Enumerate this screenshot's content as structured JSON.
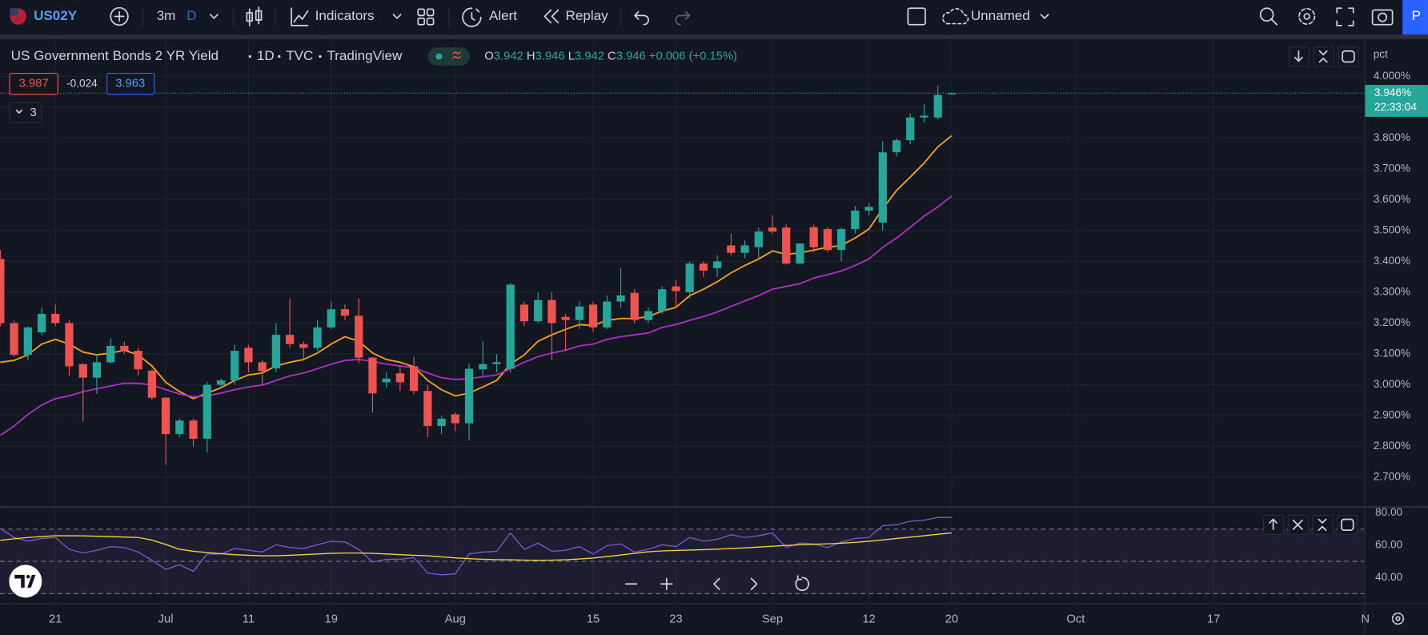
{
  "ui": {
    "symbol": "US02Y",
    "interval": "3m",
    "interval_unit": "D",
    "indicators": "Indicators",
    "alert": "Alert",
    "replay": "Replay",
    "layout_name": "Unnamed",
    "cut_button": "P"
  },
  "legend": {
    "title": "US Government Bonds 2 YR Yield",
    "timeframe": "1D",
    "exchange": "TVC",
    "source": "TradingView",
    "open_letter": "O",
    "high_letter": "H",
    "low_letter": "L",
    "close_letter": "C",
    "change": "+0.006",
    "change_percent": "(+0.15%)",
    "bid": 3.987,
    "spread": -0.024,
    "ask": 3.963,
    "hidden_indicators": "3"
  },
  "chart_data": [
    {
      "type": "candlestick",
      "categories": [
        null,
        null,
        null,
        null,
        "21",
        null,
        null,
        null,
        null,
        null,
        null,
        null,
        "Jul",
        null,
        null,
        null,
        null,
        null,
        "11",
        null,
        null,
        null,
        null,
        null,
        "19",
        null,
        null,
        null,
        null,
        null,
        null,
        null,
        null,
        "Aug",
        null,
        null,
        null,
        null,
        null,
        null,
        null,
        null,
        null,
        "15",
        null,
        null,
        null,
        null,
        null,
        "23",
        null,
        null,
        null,
        null,
        null,
        null,
        "Sep",
        null,
        null,
        null,
        null,
        null,
        null,
        "12",
        null,
        null,
        null,
        null,
        null,
        "20",
        null,
        null,
        null,
        null,
        null,
        null,
        null,
        null,
        "Oct",
        null,
        null,
        null,
        null,
        null,
        null,
        null,
        null,
        null,
        "17",
        null,
        null,
        null,
        null,
        null,
        null,
        null,
        null,
        null,
        null,
        "N"
      ],
      "open": [
        3.408,
        3.2,
        3.097,
        3.17,
        3.23,
        3.2,
        3.067,
        3.023,
        3.073,
        3.126,
        3.11,
        3.046,
        2.958,
        2.84,
        2.884,
        2.825,
        3,
        3.014,
        3.12,
        3.073,
        3.053,
        3.162,
        3.132,
        3.12,
        3.186,
        3.245,
        3.224,
        3.088,
        3.008,
        3.037,
        3.06,
        2.98,
        2.866,
        2.904,
        2.875,
        3.05,
        3.067,
        3.052,
        3.26,
        3.206,
        3.275,
        3.22,
        3.21,
        3.26,
        3.186,
        3.27,
        3.298,
        3.21,
        3.239,
        3.319,
        3.3,
        3.393,
        3.378,
        3.452,
        3.428,
        3.446,
        3.51,
        3.51,
        3.393,
        3.511,
        3.505,
        3.437,
        3.505,
        3.565,
        3.526,
        3.754,
        3.793,
        3.867,
        3.867,
        3.942,
        null,
        null,
        null,
        null,
        null,
        null,
        null,
        null,
        null,
        null,
        null,
        null,
        null,
        null,
        null,
        null,
        null,
        null,
        null,
        null,
        null,
        null,
        null,
        null,
        null,
        null,
        null,
        null,
        null,
        null
      ],
      "high": [
        3.437,
        3.21,
        3.19,
        3.25,
        3.26,
        3.21,
        3.07,
        3.1,
        3.15,
        3.14,
        3.12,
        3.05,
        2.96,
        2.89,
        2.89,
        3.01,
        3.02,
        3.13,
        3.13,
        3.08,
        3.2,
        3.28,
        3.14,
        3.21,
        3.27,
        3.26,
        3.28,
        3.09,
        3.04,
        3.06,
        3.09,
        3,
        2.9,
        2.91,
        3.07,
        3.14,
        3.1,
        3.33,
        3.27,
        3.3,
        3.3,
        3.23,
        3.27,
        3.27,
        3.29,
        3.38,
        3.31,
        3.25,
        3.32,
        3.34,
        3.4,
        3.4,
        3.42,
        3.49,
        3.47,
        3.51,
        3.55,
        3.52,
        3.46,
        3.52,
        3.51,
        3.51,
        3.58,
        3.59,
        3.79,
        3.8,
        3.88,
        3.91,
        3.97,
        3.946,
        null,
        null,
        null,
        null,
        null,
        null,
        null,
        null,
        null,
        null,
        null,
        null,
        null,
        null,
        null,
        null,
        null,
        null,
        null,
        null,
        null,
        null,
        null,
        null,
        null,
        null,
        null,
        null,
        null,
        null
      ],
      "low": [
        3.19,
        3.09,
        3.08,
        3.16,
        3.19,
        3.03,
        2.88,
        2.97,
        3.07,
        3.1,
        3.03,
        2.95,
        2.74,
        2.83,
        2.8,
        2.78,
        2.99,
        3,
        3.04,
        3,
        3.04,
        3.12,
        3.08,
        3.11,
        3.18,
        3.21,
        3.07,
        2.91,
        2.99,
        2.98,
        2.97,
        2.83,
        2.84,
        2.85,
        2.82,
        3.03,
        3.04,
        3.04,
        3.19,
        3.2,
        3.08,
        3.11,
        3.18,
        3.17,
        3.18,
        3.25,
        3.2,
        3.2,
        3.23,
        3.25,
        3.28,
        3.35,
        3.35,
        3.42,
        3.41,
        3.41,
        3.49,
        3.39,
        3.39,
        3.43,
        3.43,
        3.4,
        3.49,
        3.55,
        3.5,
        3.74,
        3.78,
        3.85,
        3.86,
        3.942,
        null,
        null,
        null,
        null,
        null,
        null,
        null,
        null,
        null,
        null,
        null,
        null,
        null,
        null,
        null,
        null,
        null,
        null,
        null,
        null,
        null,
        null,
        null,
        null,
        null,
        null,
        null,
        null,
        null,
        null
      ],
      "close": [
        3.2,
        3.097,
        3.186,
        3.23,
        3.2,
        3.06,
        3.023,
        3.073,
        3.126,
        3.11,
        3.05,
        2.958,
        2.84,
        2.884,
        2.825,
        3,
        3.014,
        3.11,
        3.073,
        3.044,
        3.162,
        3.132,
        3.12,
        3.186,
        3.245,
        3.224,
        3.088,
        2.972,
        3.02,
        3.008,
        2.98,
        2.866,
        2.89,
        2.875,
        3.052,
        3.067,
        3.073,
        3.325,
        3.206,
        3.275,
        3.2,
        3.21,
        3.254,
        3.186,
        3.27,
        3.29,
        3.21,
        3.239,
        3.31,
        3.304,
        3.393,
        3.37,
        3.4,
        3.428,
        3.452,
        3.497,
        3.497,
        3.393,
        3.458,
        3.446,
        3.437,
        3.505,
        3.565,
        3.577,
        3.754,
        3.793,
        3.867,
        3.873,
        3.94,
        3.946,
        null,
        null,
        null,
        null,
        null,
        null,
        null,
        null,
        null,
        null,
        null,
        null,
        null,
        null,
        null,
        null,
        null,
        null,
        null,
        null,
        null,
        null,
        null,
        null,
        null,
        null,
        null,
        null,
        null,
        null
      ],
      "series": [
        {
          "color": "#f7a21b",
          "values": [
            3.073,
            3.079,
            3.097,
            3.132,
            3.147,
            3.132,
            3.106,
            3.097,
            3.103,
            3.112,
            3.097,
            3.061,
            3.008,
            2.978,
            2.955,
            2.973,
            2.99,
            3.014,
            3.032,
            3.038,
            3.061,
            3.073,
            3.082,
            3.103,
            3.132,
            3.156,
            3.141,
            3.103,
            3.082,
            3.073,
            3.058,
            3.014,
            2.984,
            2.964,
            2.973,
            2.993,
            3.014,
            3.067,
            3.097,
            3.141,
            3.162,
            3.18,
            3.195,
            3.192,
            3.209,
            3.215,
            3.215,
            3.221,
            3.239,
            3.251,
            3.289,
            3.31,
            3.334,
            3.363,
            3.387,
            3.408,
            3.434,
            3.423,
            3.428,
            3.437,
            3.446,
            3.452,
            3.476,
            3.505,
            3.571,
            3.63,
            3.674,
            3.719,
            3.772,
            3.808,
            null,
            null,
            null,
            null,
            null,
            null,
            null,
            null,
            null,
            null,
            null,
            null,
            null,
            null,
            null,
            null,
            null,
            null,
            null,
            null,
            null,
            null,
            null,
            null,
            null,
            null,
            null,
            null,
            null,
            null
          ]
        },
        {
          "color": "#b02fc4",
          "values": [
            2.836,
            2.866,
            2.904,
            2.934,
            2.955,
            2.964,
            2.978,
            2.987,
            2.996,
            3.005,
            3.005,
            2.999,
            2.984,
            2.97,
            2.961,
            2.964,
            2.973,
            2.984,
            2.993,
            2.999,
            3.014,
            3.029,
            3.038,
            3.052,
            3.067,
            3.079,
            3.082,
            3.076,
            3.067,
            3.061,
            3.055,
            3.038,
            3.023,
            3.017,
            3.02,
            3.026,
            3.032,
            3.052,
            3.073,
            3.091,
            3.103,
            3.112,
            3.126,
            3.132,
            3.147,
            3.156,
            3.162,
            3.168,
            3.186,
            3.195,
            3.209,
            3.221,
            3.236,
            3.254,
            3.272,
            3.289,
            3.31,
            3.319,
            3.328,
            3.346,
            3.357,
            3.369,
            3.387,
            3.408,
            3.446,
            3.476,
            3.511,
            3.547,
            3.577,
            3.612,
            null,
            null,
            null,
            null,
            null,
            null,
            null,
            null,
            null,
            null,
            null,
            null,
            null,
            null,
            null,
            null,
            null,
            null,
            null,
            null,
            null,
            null,
            null,
            null,
            null,
            null,
            null,
            null,
            null,
            null
          ]
        }
      ],
      "up_color": "#26a69a",
      "down_color": "#ef5350",
      "ylim": [
        2.605,
        4.118
      ],
      "yticks": [
        {
          "value": 2.7,
          "label": "2.700%"
        },
        {
          "value": 2.8,
          "label": "2.800%"
        },
        {
          "value": 2.9,
          "label": "2.900%"
        },
        {
          "value": 3.0,
          "label": "3.000%"
        },
        {
          "value": 3.1,
          "label": "3.100%"
        },
        {
          "value": 3.2,
          "label": "3.200%"
        },
        {
          "value": 3.3,
          "label": "3.300%"
        },
        {
          "value": 3.4,
          "label": "3.400%"
        },
        {
          "value": 3.5,
          "label": "3.500%"
        },
        {
          "value": 3.6,
          "label": "3.600%"
        },
        {
          "value": 3.7,
          "label": "3.700%"
        },
        {
          "value": 3.8,
          "label": "3.800%"
        },
        {
          "value": 3.9,
          "label": "3.900%"
        },
        {
          "value": 4.0,
          "label": "4.000%"
        }
      ],
      "y_unit": "pct",
      "grid": true,
      "price_line": {
        "value": 3.946,
        "label": "3.946%",
        "countdown": "22:33:04",
        "color": "#26a69a"
      }
    },
    {
      "type": "line",
      "series": [
        {
          "color": "#7e57c2",
          "values": [
            70.4,
            64.8,
            62.5,
            64.2,
            64.8,
            57.5,
            55.2,
            56.9,
            59.2,
            58.6,
            55.8,
            50.7,
            45.1,
            47.9,
            43.9,
            54.6,
            54.6,
            58,
            56.9,
            55.8,
            60.3,
            58.6,
            58,
            60.3,
            62.5,
            62,
            57.5,
            49.6,
            51.3,
            51.3,
            52.4,
            42.8,
            41.7,
            42.3,
            54.6,
            55.8,
            56.3,
            67.6,
            57.5,
            61.4,
            56.3,
            56.9,
            59.2,
            54.6,
            59.7,
            60.8,
            55.8,
            57.5,
            60.3,
            59.2,
            64.8,
            62.5,
            63.7,
            66.5,
            64.8,
            65.9,
            67.6,
            58.6,
            61.4,
            60.8,
            58.6,
            62,
            64.2,
            64.8,
            72.1,
            72.7,
            74.9,
            75.5,
            77.2,
            77.2
          ]
        },
        {
          "color": "#f5d142",
          "values": [
            63.1,
            64,
            64.8,
            65.4,
            65.9,
            65.9,
            65.8,
            65.6,
            65.4,
            65.1,
            64.8,
            63.2,
            60.5,
            57.5,
            56.3,
            55.5,
            54.8,
            54.2,
            53.8,
            53.5,
            53.5,
            53.8,
            54.2,
            54.6,
            55,
            55.2,
            55.2,
            55,
            54.6,
            54.2,
            53.8,
            53.5,
            52.8,
            52.2,
            51.7,
            51.3,
            51.1,
            51,
            50.8,
            50.7,
            50.8,
            51,
            51.5,
            52.1,
            53,
            54,
            55,
            56,
            56.5,
            56.8,
            57,
            57.3,
            57.6,
            58,
            58.4,
            58.9,
            59.4,
            59.9,
            60.3,
            60.6,
            60.9,
            61.3,
            61.8,
            62.5,
            63.3,
            64.2,
            65,
            65.9,
            66.8,
            67.6
          ]
        }
      ],
      "ylim": [
        24.2,
        83.4
      ],
      "yticks": [
        {
          "value": 40,
          "label": "40.00"
        },
        {
          "value": 60,
          "label": "60.00"
        },
        {
          "value": 80,
          "label": "80.00"
        }
      ],
      "levels": [
        70,
        50,
        30
      ],
      "band": [
        30,
        70
      ]
    }
  ]
}
